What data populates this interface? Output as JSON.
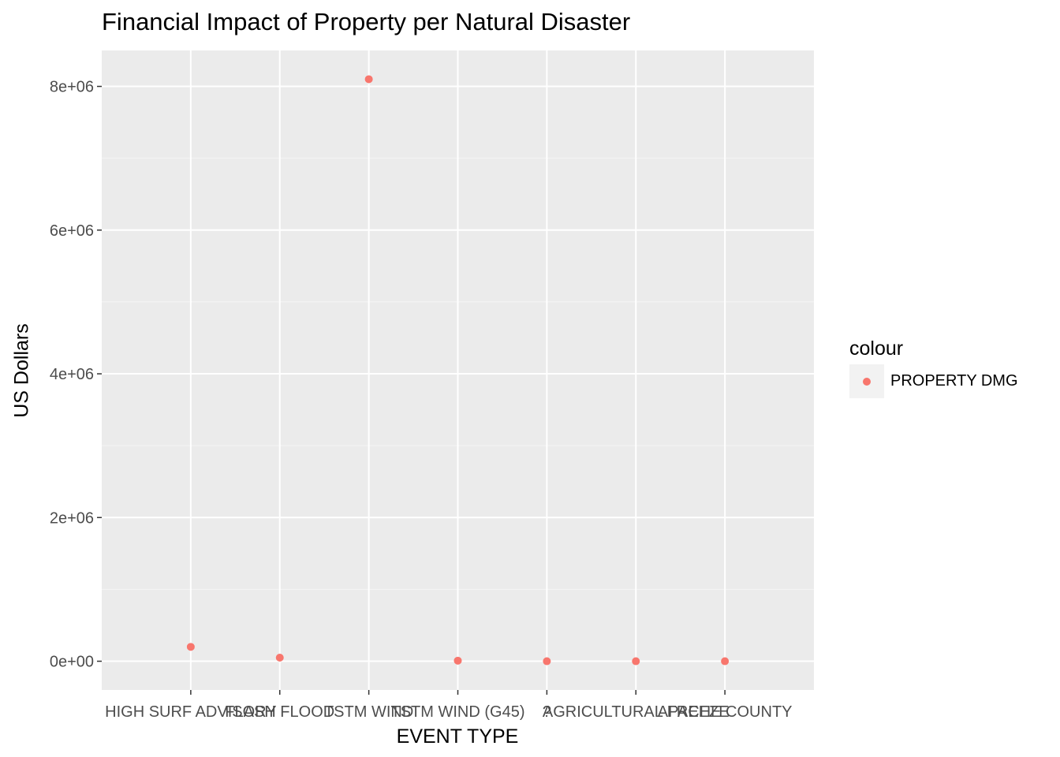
{
  "chart_data": {
    "type": "scatter",
    "title": "Financial Impact of Property per Natural Disaster",
    "xlabel": "EVENT TYPE",
    "ylabel": "US Dollars",
    "categories": [
      "HIGH SURF ADVISORY",
      "FLASH FLOOD",
      "TSTM WIND",
      "TSTM WIND (G45)",
      "?",
      "AGRICULTURAL FREEZE",
      "APACHE COUNTY"
    ],
    "series": [
      {
        "name": "PROPERTY DMG",
        "color": "#f8766d",
        "values": [
          200000,
          50000,
          8100000,
          8000,
          0,
          0,
          0
        ]
      }
    ],
    "y_ticks": [
      "0e+00",
      "2e+06",
      "4e+06",
      "6e+06",
      "8e+06"
    ],
    "y_tick_values": [
      0,
      2000000,
      4000000,
      6000000,
      8000000
    ],
    "ylim": [
      -400000,
      8500000
    ],
    "grid": true,
    "legend": {
      "title": "colour",
      "position": "right"
    },
    "colors": {
      "panel": "#ebebeb",
      "grid_major": "#ffffff",
      "grid_minor": "#f5f5f5",
      "tick_text": "#4d4d4d"
    }
  }
}
